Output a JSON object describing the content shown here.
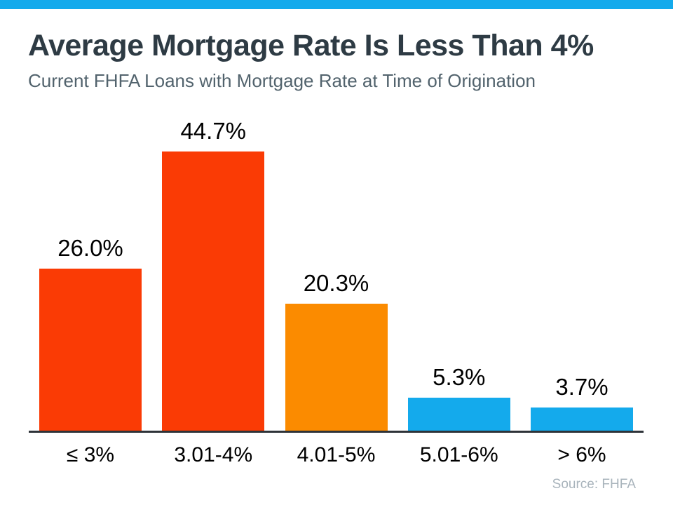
{
  "page": {
    "background_color": "#ffffff",
    "accent_stripe_color": "#14aaec"
  },
  "header": {
    "title": "Average Mortgage Rate Is Less Than 4%",
    "subtitle": "Current FHFA Loans with Mortgage Rate at Time of Origination"
  },
  "source_note": "Source: FHFA",
  "colors": {
    "title_text": "#2e3b44",
    "subtitle_text": "#52636d",
    "axis_line": "#2e3338",
    "data_label_text": "#000000",
    "source_text": "#a9b4bc",
    "red": "#fa3b05",
    "orange": "#fb8b00",
    "blue": "#14aaec"
  },
  "chart_data": {
    "type": "bar",
    "title": "Average Mortgage Rate Is Less Than 4%",
    "subtitle": "Current FHFA Loans with Mortgage Rate at Time of Origination",
    "categories": [
      "≤ 3%",
      "3.01-4%",
      "4.01-5%",
      "5.01-6%",
      "> 6%"
    ],
    "values": [
      26.0,
      44.7,
      20.3,
      5.3,
      3.7
    ],
    "value_labels": [
      "26.0%",
      "44.7%",
      "20.3%",
      "5.3%",
      "3.7%"
    ],
    "bar_colors": [
      "#fa3b05",
      "#fa3b05",
      "#fb8b00",
      "#14aaec",
      "#14aaec"
    ],
    "xlabel": "",
    "ylabel": "",
    "ylim": [
      0,
      50
    ],
    "grid": false,
    "legend": false,
    "y_axis_visible": false,
    "data_labels_position": "above-bars",
    "source": "Source: FHFA"
  }
}
